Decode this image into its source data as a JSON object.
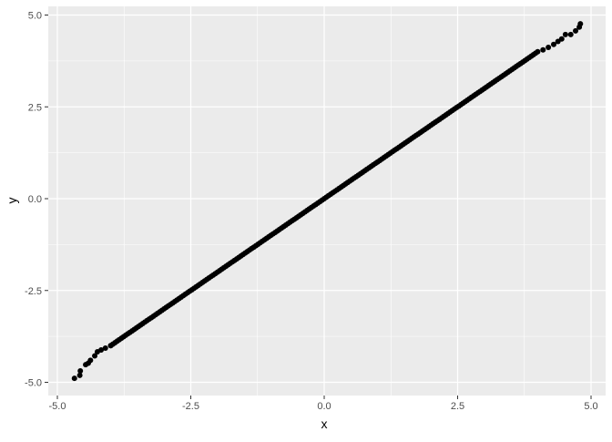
{
  "chart_data": {
    "type": "scatter",
    "title": "",
    "xlabel": "x",
    "ylabel": "y",
    "xlim": [
      -5.0,
      5.0
    ],
    "ylim": [
      -5.0,
      5.0
    ],
    "xticks": [
      "-5.0",
      "-2.5",
      "0.0",
      "2.5",
      "5.0"
    ],
    "yticks": [
      "-5.0",
      "-2.5",
      "0.0",
      "2.5",
      "5.0"
    ],
    "grid": true,
    "point_color": "#000000",
    "panel_color": "#EBEBEB",
    "tail_points": {
      "x": [
        -4.68,
        -4.58,
        -4.57,
        -4.47,
        -4.42,
        -4.38,
        -4.3,
        -4.25,
        -4.18,
        -4.1,
        -4.0,
        4.1,
        4.2,
        4.3,
        4.38,
        4.45,
        4.52,
        4.62,
        4.71,
        4.78,
        4.8
      ],
      "y": [
        -4.89,
        -4.81,
        -4.69,
        -4.52,
        -4.48,
        -4.4,
        -4.28,
        -4.17,
        -4.12,
        -4.07,
        -4.0,
        4.05,
        4.12,
        4.2,
        4.28,
        4.35,
        4.47,
        4.47,
        4.57,
        4.67,
        4.76
      ]
    },
    "trend": "points lie along y = x between x = -4.0 and x = 4.0",
    "core_range": [
      -4.0,
      4.0
    ]
  }
}
